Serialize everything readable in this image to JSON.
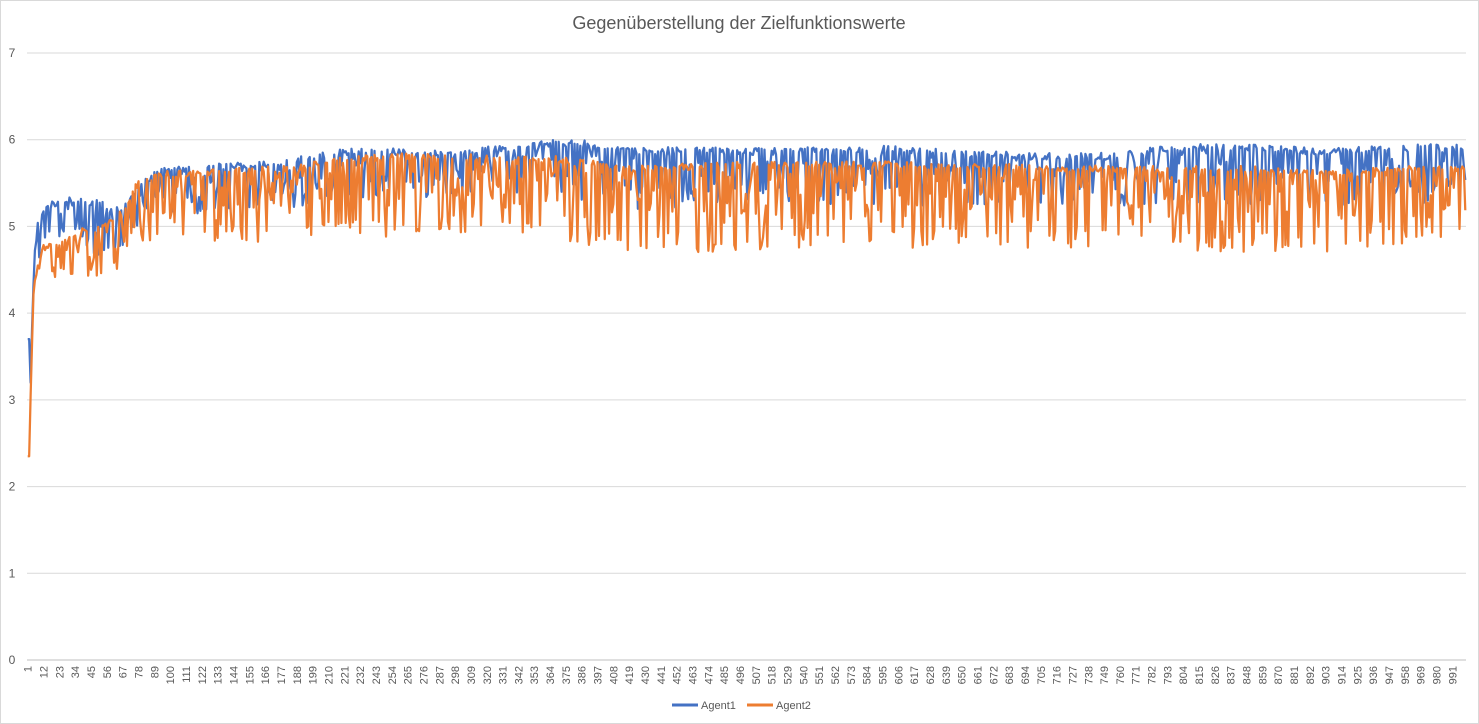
{
  "chart_data": {
    "type": "line",
    "title": "Gegenüberstellung der Zielfunktionswerte",
    "xlabel": "",
    "ylabel": "",
    "ylim": [
      0,
      7
    ],
    "yticks": [
      "0",
      "1",
      "2",
      "3",
      "4",
      "5",
      "6",
      "7"
    ],
    "x_count": 1000,
    "xtick_labels": [
      "1",
      "12",
      "23",
      "34",
      "45",
      "56",
      "67",
      "78",
      "89",
      "100",
      "111",
      "122",
      "133",
      "144",
      "155",
      "166",
      "177",
      "188",
      "199",
      "210",
      "221",
      "232",
      "243",
      "254",
      "265",
      "276",
      "287",
      "298",
      "309",
      "320",
      "331",
      "342",
      "353",
      "364",
      "375",
      "386",
      "397",
      "408",
      "419",
      "430",
      "441",
      "452",
      "463",
      "474",
      "485",
      "496",
      "507",
      "518",
      "529",
      "540",
      "551",
      "562",
      "573",
      "584",
      "595",
      "606",
      "617",
      "628",
      "639",
      "650",
      "661",
      "672",
      "683",
      "694",
      "705",
      "716",
      "727",
      "738",
      "749",
      "760",
      "771",
      "782",
      "793",
      "804",
      "815",
      "826",
      "837",
      "848",
      "859",
      "870",
      "881",
      "892",
      "903",
      "914",
      "925",
      "936",
      "947",
      "958",
      "969",
      "980",
      "991"
    ],
    "grid": true,
    "legend_position": "bottom",
    "series": [
      {
        "name": "Agent1",
        "color": "#4472c4",
        "profile_x": [
          1,
          2,
          3,
          5,
          8,
          12,
          20,
          30,
          40,
          50,
          60,
          70,
          78,
          90,
          100,
          120,
          150,
          180,
          200,
          220,
          250,
          300,
          340,
          360,
          380,
          400,
          420,
          450,
          500,
          550,
          600,
          650,
          700,
          750,
          800,
          850,
          900,
          950,
          1000
        ],
        "profile_upper": [
          3.7,
          3.7,
          3.2,
          4.6,
          5.1,
          5.25,
          5.3,
          5.35,
          5.35,
          5.35,
          5.2,
          5.3,
          5.5,
          5.65,
          5.7,
          5.72,
          5.74,
          5.76,
          5.85,
          5.9,
          5.9,
          5.9,
          5.95,
          6.0,
          6.0,
          5.98,
          5.9,
          5.92,
          5.9,
          5.92,
          5.93,
          5.88,
          5.85,
          5.85,
          5.95,
          5.95,
          5.9,
          5.95,
          5.95
        ],
        "profile_lower": [
          3.7,
          3.7,
          3.0,
          4.3,
          4.6,
          4.7,
          4.75,
          4.75,
          4.7,
          4.65,
          4.6,
          4.8,
          5.0,
          5.1,
          5.15,
          5.15,
          5.2,
          5.2,
          5.25,
          5.3,
          5.3,
          5.35,
          5.35,
          5.3,
          5.25,
          5.2,
          5.2,
          5.2,
          5.2,
          5.25,
          5.25,
          5.2,
          5.2,
          5.2,
          5.25,
          5.2,
          5.2,
          5.25,
          5.25
        ]
      },
      {
        "name": "Agent2",
        "color": "#ed7d31",
        "profile_x": [
          1,
          2,
          3,
          5,
          8,
          12,
          20,
          30,
          40,
          50,
          60,
          70,
          78,
          90,
          100,
          120,
          150,
          180,
          200,
          220,
          250,
          300,
          340,
          360,
          380,
          400,
          420,
          450,
          500,
          550,
          600,
          650,
          700,
          750,
          800,
          850,
          900,
          950,
          1000
        ],
        "profile_upper": [
          2.35,
          2.35,
          3.1,
          4.3,
          4.6,
          4.8,
          4.85,
          4.9,
          5.0,
          5.0,
          5.1,
          5.3,
          5.55,
          5.6,
          5.65,
          5.65,
          5.68,
          5.7,
          5.75,
          5.8,
          5.85,
          5.85,
          5.8,
          5.82,
          5.8,
          5.75,
          5.7,
          5.72,
          5.75,
          5.75,
          5.75,
          5.72,
          5.72,
          5.7,
          5.7,
          5.7,
          5.65,
          5.7,
          5.7
        ],
        "profile_lower": [
          2.35,
          2.35,
          3.0,
          4.0,
          4.05,
          4.1,
          4.2,
          4.25,
          4.3,
          4.35,
          4.4,
          4.6,
          4.8,
          4.85,
          4.85,
          4.85,
          4.8,
          4.85,
          4.9,
          4.9,
          4.85,
          4.9,
          4.9,
          4.85,
          4.8,
          4.75,
          4.7,
          4.7,
          4.7,
          4.75,
          4.75,
          4.75,
          4.75,
          4.75,
          4.7,
          4.7,
          4.7,
          4.75,
          4.8
        ]
      }
    ]
  }
}
